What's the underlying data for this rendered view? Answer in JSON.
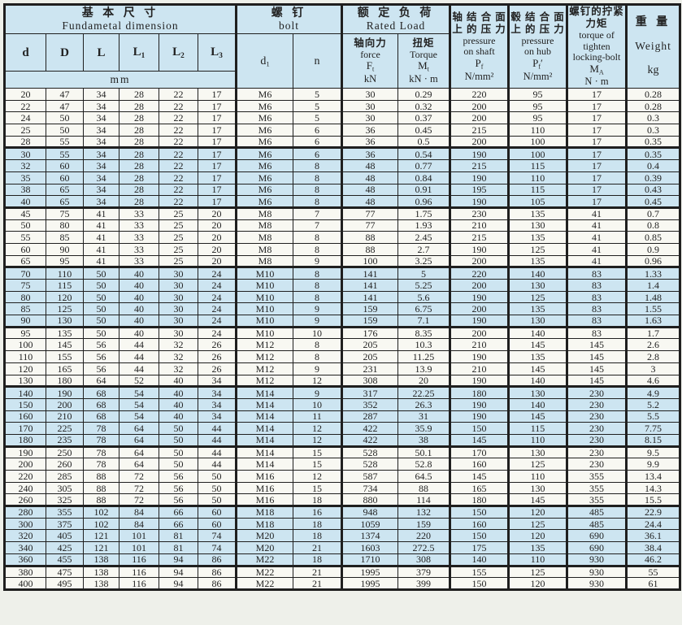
{
  "colors": {
    "band_blue": "#cde5f1",
    "row_white": "#f8f8f2",
    "border": "#1f1f1f",
    "text": "#222222",
    "page_margin": "#eef0ea"
  },
  "table": {
    "header": {
      "basic": {
        "zh": "基 本 尺 寸",
        "en": "Fundametal  dimension"
      },
      "bolt": {
        "zh": "螺 钉",
        "en": "bolt"
      },
      "load": {
        "zh": "额 定 负 荷",
        "en": "Rated  Load"
      },
      "cols": {
        "d": "d",
        "D": "D",
        "L": "L",
        "L1_base": "L",
        "L1_sub": "1",
        "L2_base": "L",
        "L2_sub": "2",
        "L3_base": "L",
        "L3_sub": "3",
        "d1_base": "d",
        "d1_sub": "1",
        "n": "n"
      },
      "unit_mm": "mm",
      "force": {
        "zh": "轴向力",
        "en": "force",
        "sym_base": "F",
        "sym_sub": "t",
        "unit": "kN"
      },
      "torque": {
        "zh": "扭矩",
        "en": "Torque",
        "sym_base": "M",
        "sym_sub": "t",
        "unit": "kN · m"
      },
      "p_shaft": {
        "zh1": "轴 结 合 面",
        "zh2": "上 的 压 力",
        "en1": "pressure",
        "en2": "on  shaft",
        "sym_base": "P",
        "sym_sub": "f",
        "unit": "N/mm²"
      },
      "p_hub": {
        "zh1": "毂 结 合 面",
        "zh2": "上 的 压 力",
        "en1": "pressure",
        "en2": "on hub",
        "sym_base": "P",
        "sym_sub": "f",
        "sym_prime": "′",
        "unit": "N/mm²"
      },
      "ma": {
        "zh1": "螺钉的拧紧",
        "zh2": "力矩",
        "en1": "torque of",
        "en2": "tighten",
        "en3": "locking-bolt",
        "sym_base": "M",
        "sym_sub": "A",
        "unit": "N · m"
      },
      "weight": {
        "zh": "重 量",
        "en": "Weight",
        "unit": "kg"
      }
    },
    "rows": [
      {
        "shaded": false,
        "band_start": false,
        "cells": [
          "20",
          "47",
          "34",
          "28",
          "22",
          "17",
          "M6",
          "5",
          "30",
          "0.29",
          "220",
          "95",
          "17",
          "0.28"
        ]
      },
      {
        "shaded": false,
        "band_start": false,
        "cells": [
          "22",
          "47",
          "34",
          "28",
          "22",
          "17",
          "M6",
          "5",
          "30",
          "0.32",
          "200",
          "95",
          "17",
          "0.28"
        ]
      },
      {
        "shaded": false,
        "band_start": false,
        "cells": [
          "24",
          "50",
          "34",
          "28",
          "22",
          "17",
          "M6",
          "5",
          "30",
          "0.37",
          "200",
          "95",
          "17",
          "0.3"
        ]
      },
      {
        "shaded": false,
        "band_start": false,
        "cells": [
          "25",
          "50",
          "34",
          "28",
          "22",
          "17",
          "M6",
          "6",
          "36",
          "0.45",
          "215",
          "110",
          "17",
          "0.3"
        ]
      },
      {
        "shaded": false,
        "band_start": false,
        "cells": [
          "28",
          "55",
          "34",
          "28",
          "22",
          "17",
          "M6",
          "6",
          "36",
          "0.5",
          "200",
          "100",
          "17",
          "0.35"
        ]
      },
      {
        "shaded": true,
        "band_start": true,
        "cells": [
          "30",
          "55",
          "34",
          "28",
          "22",
          "17",
          "M6",
          "6",
          "36",
          "0.54",
          "190",
          "100",
          "17",
          "0.35"
        ]
      },
      {
        "shaded": true,
        "band_start": false,
        "cells": [
          "32",
          "60",
          "34",
          "28",
          "22",
          "17",
          "M6",
          "8",
          "48",
          "0.77",
          "215",
          "115",
          "17",
          "0.4"
        ]
      },
      {
        "shaded": true,
        "band_start": false,
        "cells": [
          "35",
          "60",
          "34",
          "28",
          "22",
          "17",
          "M6",
          "8",
          "48",
          "0.84",
          "190",
          "110",
          "17",
          "0.39"
        ]
      },
      {
        "shaded": true,
        "band_start": false,
        "cells": [
          "38",
          "65",
          "34",
          "28",
          "22",
          "17",
          "M6",
          "8",
          "48",
          "0.91",
          "195",
          "115",
          "17",
          "0.43"
        ]
      },
      {
        "shaded": true,
        "band_start": false,
        "cells": [
          "40",
          "65",
          "34",
          "28",
          "22",
          "17",
          "M6",
          "8",
          "48",
          "0.96",
          "190",
          "105",
          "17",
          "0.45"
        ]
      },
      {
        "shaded": false,
        "band_start": true,
        "cells": [
          "45",
          "75",
          "41",
          "33",
          "25",
          "20",
          "M8",
          "7",
          "77",
          "1.75",
          "230",
          "135",
          "41",
          "0.7"
        ]
      },
      {
        "shaded": false,
        "band_start": false,
        "cells": [
          "50",
          "80",
          "41",
          "33",
          "25",
          "20",
          "M8",
          "7",
          "77",
          "1.93",
          "210",
          "130",
          "41",
          "0.8"
        ]
      },
      {
        "shaded": false,
        "band_start": false,
        "cells": [
          "55",
          "85",
          "41",
          "33",
          "25",
          "20",
          "M8",
          "8",
          "88",
          "2.45",
          "215",
          "135",
          "41",
          "0.85"
        ]
      },
      {
        "shaded": false,
        "band_start": false,
        "cells": [
          "60",
          "90",
          "41",
          "33",
          "25",
          "20",
          "M8",
          "8",
          "88",
          "2.7",
          "190",
          "125",
          "41",
          "0.9"
        ]
      },
      {
        "shaded": false,
        "band_start": false,
        "cells": [
          "65",
          "95",
          "41",
          "33",
          "25",
          "20",
          "M8",
          "9",
          "100",
          "3.25",
          "200",
          "135",
          "41",
          "0.96"
        ]
      },
      {
        "shaded": true,
        "band_start": true,
        "cells": [
          "70",
          "110",
          "50",
          "40",
          "30",
          "24",
          "M10",
          "8",
          "141",
          "5",
          "220",
          "140",
          "83",
          "1.33"
        ]
      },
      {
        "shaded": true,
        "band_start": false,
        "cells": [
          "75",
          "115",
          "50",
          "40",
          "30",
          "24",
          "M10",
          "8",
          "141",
          "5.25",
          "200",
          "130",
          "83",
          "1.4"
        ]
      },
      {
        "shaded": true,
        "band_start": false,
        "cells": [
          "80",
          "120",
          "50",
          "40",
          "30",
          "24",
          "M10",
          "8",
          "141",
          "5.6",
          "190",
          "125",
          "83",
          "1.48"
        ]
      },
      {
        "shaded": true,
        "band_start": false,
        "cells": [
          "85",
          "125",
          "50",
          "40",
          "30",
          "24",
          "M10",
          "9",
          "159",
          "6.75",
          "200",
          "135",
          "83",
          "1.55"
        ]
      },
      {
        "shaded": true,
        "band_start": false,
        "cells": [
          "90",
          "130",
          "50",
          "40",
          "30",
          "24",
          "M10",
          "9",
          "159",
          "7.1",
          "190",
          "130",
          "83",
          "1.63"
        ]
      },
      {
        "shaded": false,
        "band_start": true,
        "cells": [
          "95",
          "135",
          "50",
          "40",
          "30",
          "24",
          "M10",
          "10",
          "176",
          "8.35",
          "200",
          "140",
          "83",
          "1.7"
        ]
      },
      {
        "shaded": false,
        "band_start": false,
        "cells": [
          "100",
          "145",
          "56",
          "44",
          "32",
          "26",
          "M12",
          "8",
          "205",
          "10.3",
          "210",
          "145",
          "145",
          "2.6"
        ]
      },
      {
        "shaded": false,
        "band_start": false,
        "cells": [
          "110",
          "155",
          "56",
          "44",
          "32",
          "26",
          "M12",
          "8",
          "205",
          "11.25",
          "190",
          "135",
          "145",
          "2.8"
        ]
      },
      {
        "shaded": false,
        "band_start": false,
        "cells": [
          "120",
          "165",
          "56",
          "44",
          "32",
          "26",
          "M12",
          "9",
          "231",
          "13.9",
          "210",
          "145",
          "145",
          "3"
        ]
      },
      {
        "shaded": false,
        "band_start": false,
        "cells": [
          "130",
          "180",
          "64",
          "52",
          "40",
          "34",
          "M12",
          "12",
          "308",
          "20",
          "190",
          "140",
          "145",
          "4.6"
        ]
      },
      {
        "shaded": true,
        "band_start": true,
        "cells": [
          "140",
          "190",
          "68",
          "54",
          "40",
          "34",
          "M14",
          "9",
          "317",
          "22.25",
          "180",
          "130",
          "230",
          "4.9"
        ]
      },
      {
        "shaded": true,
        "band_start": false,
        "cells": [
          "150",
          "200",
          "68",
          "54",
          "40",
          "34",
          "M14",
          "10",
          "352",
          "26.3",
          "190",
          "140",
          "230",
          "5.2"
        ]
      },
      {
        "shaded": true,
        "band_start": false,
        "cells": [
          "160",
          "210",
          "68",
          "54",
          "40",
          "34",
          "M14",
          "11",
          "287",
          "31",
          "190",
          "145",
          "230",
          "5.5"
        ]
      },
      {
        "shaded": true,
        "band_start": false,
        "cells": [
          "170",
          "225",
          "78",
          "64",
          "50",
          "44",
          "M14",
          "12",
          "422",
          "35.9",
          "150",
          "115",
          "230",
          "7.75"
        ]
      },
      {
        "shaded": true,
        "band_start": false,
        "cells": [
          "180",
          "235",
          "78",
          "64",
          "50",
          "44",
          "M14",
          "12",
          "422",
          "38",
          "145",
          "110",
          "230",
          "8.15"
        ]
      },
      {
        "shaded": false,
        "band_start": true,
        "cells": [
          "190",
          "250",
          "78",
          "64",
          "50",
          "44",
          "M14",
          "15",
          "528",
          "50.1",
          "170",
          "130",
          "230",
          "9.5"
        ]
      },
      {
        "shaded": false,
        "band_start": false,
        "cells": [
          "200",
          "260",
          "78",
          "64",
          "50",
          "44",
          "M14",
          "15",
          "528",
          "52.8",
          "160",
          "125",
          "230",
          "9.9"
        ]
      },
      {
        "shaded": false,
        "band_start": false,
        "cells": [
          "220",
          "285",
          "88",
          "72",
          "56",
          "50",
          "M16",
          "12",
          "587",
          "64.5",
          "145",
          "110",
          "355",
          "13.4"
        ]
      },
      {
        "shaded": false,
        "band_start": false,
        "cells": [
          "240",
          "305",
          "88",
          "72",
          "56",
          "50",
          "M16",
          "15",
          "734",
          "88",
          "165",
          "130",
          "355",
          "14.3"
        ]
      },
      {
        "shaded": false,
        "band_start": false,
        "cells": [
          "260",
          "325",
          "88",
          "72",
          "56",
          "50",
          "M16",
          "18",
          "880",
          "114",
          "180",
          "145",
          "355",
          "15.5"
        ]
      },
      {
        "shaded": true,
        "band_start": true,
        "cells": [
          "280",
          "355",
          "102",
          "84",
          "66",
          "60",
          "M18",
          "16",
          "948",
          "132",
          "150",
          "120",
          "485",
          "22.9"
        ]
      },
      {
        "shaded": true,
        "band_start": false,
        "cells": [
          "300",
          "375",
          "102",
          "84",
          "66",
          "60",
          "M18",
          "18",
          "1059",
          "159",
          "160",
          "125",
          "485",
          "24.4"
        ]
      },
      {
        "shaded": true,
        "band_start": false,
        "cells": [
          "320",
          "405",
          "121",
          "101",
          "81",
          "74",
          "M20",
          "18",
          "1374",
          "220",
          "150",
          "120",
          "690",
          "36.1"
        ]
      },
      {
        "shaded": true,
        "band_start": false,
        "cells": [
          "340",
          "425",
          "121",
          "101",
          "81",
          "74",
          "M20",
          "21",
          "1603",
          "272.5",
          "175",
          "135",
          "690",
          "38.4"
        ]
      },
      {
        "shaded": true,
        "band_start": false,
        "cells": [
          "360",
          "455",
          "138",
          "116",
          "94",
          "86",
          "M22",
          "18",
          "1710",
          "308",
          "140",
          "110",
          "930",
          "46.2"
        ]
      },
      {
        "shaded": false,
        "band_start": true,
        "cells": [
          "380",
          "475",
          "138",
          "116",
          "94",
          "86",
          "M22",
          "21",
          "1995",
          "379",
          "155",
          "125",
          "930",
          "55"
        ]
      },
      {
        "shaded": false,
        "band_start": false,
        "cells": [
          "400",
          "495",
          "138",
          "116",
          "94",
          "86",
          "M22",
          "21",
          "1995",
          "399",
          "150",
          "120",
          "930",
          "61"
        ]
      }
    ]
  }
}
